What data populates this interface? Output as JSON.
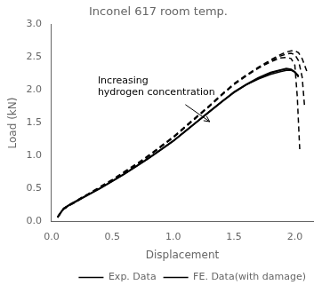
{
  "chart_data": {
    "type": "line",
    "title": "Inconel 617 room temp.",
    "xlabel": "Displacement",
    "ylabel": "Load (kN)",
    "xlim": [
      0.0,
      2.15
    ],
    "ylim": [
      0.0,
      3.0
    ],
    "xticks": [
      {
        "value": 0,
        "label": "0.0"
      },
      0.5,
      {
        "value": 1,
        "label": "1.0"
      },
      1.5,
      {
        "value": 2,
        "label": "2.0"
      }
    ],
    "yticks": [
      {
        "value": 0,
        "label": "0.0"
      },
      0.5,
      {
        "value": 1,
        "label": "1.0"
      },
      1.5,
      {
        "value": 2,
        "label": "2.0"
      },
      2.5,
      {
        "value": 3,
        "label": "3.0"
      }
    ],
    "grid": false,
    "legend": "lower right",
    "annotations": [
      {
        "text": "Increasing\nhydrogen concentration",
        "x": 0.38,
        "y": 2.22
      }
    ],
    "arrows": [
      {
        "from": [
          1.1,
          1.78
        ],
        "to": [
          1.3,
          1.52
        ]
      }
    ],
    "series": [
      {
        "name": "Exp. Data",
        "color": "#000000",
        "line_style": "solid",
        "x": [
          0.05,
          0.08,
          0.1,
          0.15,
          0.2,
          0.25,
          0.3,
          0.4,
          0.5,
          0.6,
          0.7,
          0.8,
          0.9,
          1.0,
          1.1,
          1.2,
          1.3,
          1.4,
          1.5,
          1.6,
          1.7,
          1.8,
          1.88,
          1.93,
          1.97,
          2.0,
          2.03
        ],
        "values": [
          0.07,
          0.15,
          0.2,
          0.26,
          0.31,
          0.36,
          0.41,
          0.51,
          0.62,
          0.73,
          0.85,
          0.97,
          1.1,
          1.23,
          1.38,
          1.53,
          1.68,
          1.83,
          1.97,
          2.08,
          2.17,
          2.24,
          2.28,
          2.3,
          2.3,
          2.28,
          2.22
        ]
      },
      {
        "name": "Exp. Data",
        "color": "#000000",
        "line_style": "solid",
        "x": [
          0.05,
          0.08,
          0.1,
          0.15,
          0.2,
          0.25,
          0.3,
          0.4,
          0.5,
          0.6,
          0.7,
          0.8,
          0.9,
          1.0,
          1.1,
          1.2,
          1.3,
          1.4,
          1.5,
          1.6,
          1.7,
          1.8,
          1.88,
          1.93,
          1.97,
          2.0,
          2.03
        ],
        "values": [
          0.06,
          0.14,
          0.19,
          0.25,
          0.3,
          0.35,
          0.4,
          0.5,
          0.61,
          0.72,
          0.84,
          0.96,
          1.09,
          1.22,
          1.37,
          1.52,
          1.67,
          1.82,
          1.96,
          2.08,
          2.18,
          2.26,
          2.3,
          2.32,
          2.31,
          2.27,
          2.2
        ]
      },
      {
        "name": "Exp. Data",
        "color": "#000000",
        "line_style": "solid",
        "x": [
          0.05,
          0.08,
          0.1,
          0.15,
          0.2,
          0.25,
          0.3,
          0.4,
          0.5,
          0.6,
          0.7,
          0.8,
          0.9,
          1.0,
          1.1,
          1.2,
          1.3,
          1.4,
          1.5,
          1.6,
          1.7,
          1.8,
          1.88,
          1.93,
          1.97,
          2.0,
          2.03
        ],
        "values": [
          0.065,
          0.145,
          0.195,
          0.255,
          0.305,
          0.355,
          0.405,
          0.505,
          0.615,
          0.725,
          0.845,
          0.965,
          1.095,
          1.225,
          1.375,
          1.525,
          1.675,
          1.825,
          1.975,
          2.09,
          2.19,
          2.27,
          2.31,
          2.33,
          2.32,
          2.28,
          2.21
        ]
      },
      {
        "name": "FE. Data(with damage)",
        "color": "#000000",
        "line_style": "dashed",
        "x": [
          0.05,
          0.08,
          0.1,
          0.15,
          0.2,
          0.25,
          0.3,
          0.4,
          0.5,
          0.6,
          0.7,
          0.8,
          0.9,
          1.0,
          1.1,
          1.2,
          1.3,
          1.4,
          1.5,
          1.6,
          1.7,
          1.8,
          1.88,
          1.93,
          1.97,
          2.0,
          2.03,
          2.06,
          2.1
        ],
        "values": [
          0.07,
          0.15,
          0.2,
          0.26,
          0.31,
          0.37,
          0.42,
          0.53,
          0.64,
          0.76,
          0.88,
          1.01,
          1.15,
          1.29,
          1.45,
          1.61,
          1.77,
          1.94,
          2.1,
          2.23,
          2.35,
          2.46,
          2.54,
          2.58,
          2.6,
          2.6,
          2.57,
          2.48,
          2.28
        ]
      },
      {
        "name": "FE. Data(with damage)",
        "color": "#000000",
        "line_style": "dashed",
        "x": [
          0.05,
          0.08,
          0.1,
          0.15,
          0.2,
          0.25,
          0.3,
          0.4,
          0.5,
          0.6,
          0.7,
          0.8,
          0.9,
          1.0,
          1.1,
          1.2,
          1.3,
          1.4,
          1.5,
          1.6,
          1.7,
          1.8,
          1.88,
          1.93,
          1.97,
          2.0,
          2.03,
          2.06,
          2.08
        ],
        "values": [
          0.065,
          0.14,
          0.19,
          0.25,
          0.3,
          0.36,
          0.41,
          0.52,
          0.63,
          0.75,
          0.87,
          1.0,
          1.14,
          1.28,
          1.44,
          1.6,
          1.76,
          1.93,
          2.09,
          2.22,
          2.34,
          2.44,
          2.52,
          2.55,
          2.56,
          2.54,
          2.45,
          2.2,
          1.75
        ]
      },
      {
        "name": "FE. Data(with damage)",
        "color": "#000000",
        "line_style": "dashed",
        "x": [
          0.05,
          0.08,
          0.1,
          0.15,
          0.2,
          0.25,
          0.3,
          0.4,
          0.5,
          0.6,
          0.7,
          0.8,
          0.9,
          1.0,
          1.1,
          1.2,
          1.3,
          1.4,
          1.5,
          1.6,
          1.7,
          1.8,
          1.88,
          1.93,
          1.97,
          2.0,
          2.02,
          2.04
        ],
        "values": [
          0.06,
          0.135,
          0.185,
          0.245,
          0.295,
          0.355,
          0.405,
          0.515,
          0.625,
          0.745,
          0.865,
          0.995,
          1.135,
          1.275,
          1.435,
          1.595,
          1.755,
          1.925,
          2.085,
          2.215,
          2.335,
          2.43,
          2.49,
          2.5,
          2.48,
          2.38,
          1.9,
          1.1
        ]
      }
    ]
  }
}
